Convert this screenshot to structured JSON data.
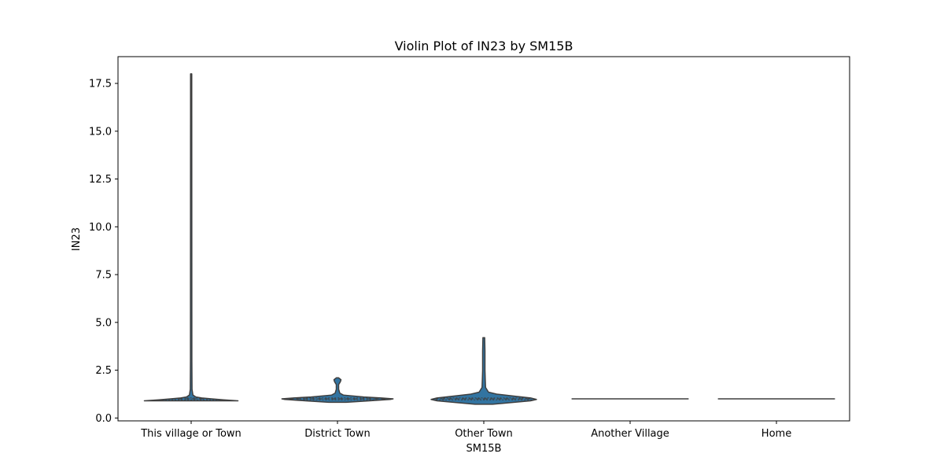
{
  "chart_data": {
    "type": "violin",
    "title": "Violin Plot of IN23 by SM15B",
    "xlabel": "SM15B",
    "ylabel": "IN23",
    "ylim": [
      -0.15,
      18.9
    ],
    "yticks": [
      "0.0",
      "2.5",
      "5.0",
      "7.5",
      "10.0",
      "12.5",
      "15.0",
      "17.5"
    ],
    "ytick_values": [
      0,
      2.5,
      5,
      7.5,
      10,
      12.5,
      15,
      17.5
    ],
    "categories": [
      "This village or Town",
      "District Town",
      "Other Town",
      "Another Village",
      "Home"
    ],
    "violins": [
      {
        "category": "This village or Town",
        "min": 0.9,
        "max": 18.0,
        "median": 1.0,
        "q1": 0.95,
        "q3": 1.05,
        "profile": [
          [
            0.9,
            0.8
          ],
          [
            0.95,
            0.55
          ],
          [
            1.0,
            0.35
          ],
          [
            1.05,
            0.18
          ],
          [
            1.1,
            0.08
          ],
          [
            1.2,
            0.03
          ],
          [
            1.5,
            0.015
          ],
          [
            3.0,
            0.012
          ],
          [
            18.0,
            0.01
          ]
        ]
      },
      {
        "category": "District Town",
        "min": 0.82,
        "max": 2.1,
        "median": 1.0,
        "q1": 0.95,
        "q3": 1.05,
        "profile": [
          [
            0.82,
            0.15
          ],
          [
            0.9,
            0.55
          ],
          [
            0.97,
            0.9
          ],
          [
            1.0,
            0.95
          ],
          [
            1.05,
            0.75
          ],
          [
            1.1,
            0.45
          ],
          [
            1.2,
            0.1
          ],
          [
            1.3,
            0.04
          ],
          [
            1.5,
            0.02
          ],
          [
            1.75,
            0.02
          ],
          [
            1.9,
            0.05
          ],
          [
            2.0,
            0.06
          ],
          [
            2.1,
            0.02
          ]
        ]
      },
      {
        "category": "Other Town",
        "min": 0.72,
        "max": 4.2,
        "median": 1.0,
        "q1": 0.95,
        "q3": 1.05,
        "profile": [
          [
            0.72,
            0.15
          ],
          [
            0.8,
            0.45
          ],
          [
            0.9,
            0.8
          ],
          [
            0.97,
            0.9
          ],
          [
            1.05,
            0.8
          ],
          [
            1.15,
            0.5
          ],
          [
            1.25,
            0.22
          ],
          [
            1.35,
            0.08
          ],
          [
            1.6,
            0.03
          ],
          [
            2.0,
            0.025
          ],
          [
            2.5,
            0.02
          ],
          [
            3.5,
            0.02
          ],
          [
            4.2,
            0.015
          ]
        ]
      },
      {
        "category": "Another Village",
        "min": 1.0,
        "max": 1.0,
        "median": 1.0,
        "flat": true
      },
      {
        "category": "Home",
        "min": 1.0,
        "max": 1.0,
        "median": 1.0,
        "flat": true
      }
    ],
    "violin_color": "#3274a1",
    "edge_color": "#3f3f3f",
    "grid": false
  }
}
